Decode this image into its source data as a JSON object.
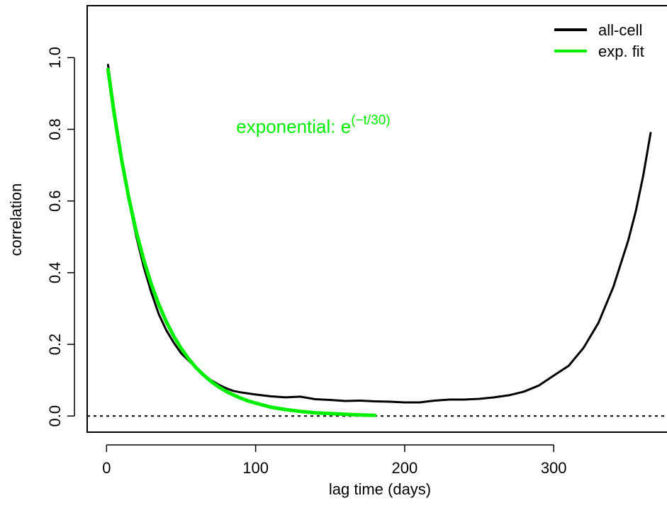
{
  "chart_data": {
    "type": "line",
    "xlabel": "lag time (days)",
    "ylabel": "correlation",
    "xlim": [
      -13,
      376
    ],
    "ylim": [
      -0.045,
      1.145
    ],
    "xticks": [
      0,
      100,
      200,
      300
    ],
    "xtick_labels": [
      "0",
      "100",
      "200",
      "300"
    ],
    "yticks": [
      0.0,
      0.2,
      0.4,
      0.6,
      0.8,
      1.0
    ],
    "ytick_labels": [
      "0.0",
      "0.2",
      "0.4",
      "0.6",
      "0.8",
      "1.0"
    ],
    "grid": false,
    "legend_position": "top-right",
    "reference_line": {
      "y": 0,
      "style": "dotted"
    },
    "annotation": {
      "text": "exponential: ",
      "base": "e",
      "exponent": "(−t/30)",
      "x": 87,
      "y": 0.79,
      "color": "#00ee00"
    },
    "series": [
      {
        "name": "all-cell",
        "color": "#000000",
        "x": [
          1,
          5,
          10,
          15,
          20,
          25,
          30,
          35,
          40,
          45,
          50,
          55,
          60,
          65,
          70,
          75,
          80,
          85,
          90,
          95,
          100,
          110,
          120,
          130,
          140,
          150,
          160,
          170,
          180,
          190,
          200,
          210,
          220,
          230,
          240,
          250,
          260,
          270,
          280,
          290,
          300,
          310,
          320,
          330,
          340,
          350,
          355,
          360,
          365
        ],
        "y": [
          0.98,
          0.86,
          0.72,
          0.6,
          0.5,
          0.415,
          0.345,
          0.285,
          0.24,
          0.205,
          0.175,
          0.155,
          0.135,
          0.115,
          0.1,
          0.088,
          0.078,
          0.07,
          0.066,
          0.063,
          0.06,
          0.055,
          0.052,
          0.054,
          0.047,
          0.045,
          0.042,
          0.043,
          0.041,
          0.04,
          0.038,
          0.038,
          0.043,
          0.046,
          0.046,
          0.048,
          0.052,
          0.058,
          0.068,
          0.085,
          0.113,
          0.14,
          0.19,
          0.26,
          0.36,
          0.49,
          0.57,
          0.67,
          0.79
        ]
      },
      {
        "name": "exp. fit",
        "color": "#00ee00",
        "x": [
          1,
          5,
          10,
          15,
          20,
          25,
          30,
          35,
          40,
          45,
          50,
          55,
          60,
          65,
          70,
          75,
          80,
          85,
          90,
          95,
          100,
          110,
          120,
          130,
          140,
          150,
          160,
          170,
          180
        ],
        "y": [
          0.967,
          0.846,
          0.717,
          0.607,
          0.513,
          0.435,
          0.368,
          0.312,
          0.264,
          0.223,
          0.189,
          0.16,
          0.135,
          0.115,
          0.097,
          0.082,
          0.069,
          0.059,
          0.05,
          0.042,
          0.036,
          0.025,
          0.018,
          0.013,
          0.009,
          0.007,
          0.005,
          0.003,
          0.002
        ]
      }
    ]
  }
}
